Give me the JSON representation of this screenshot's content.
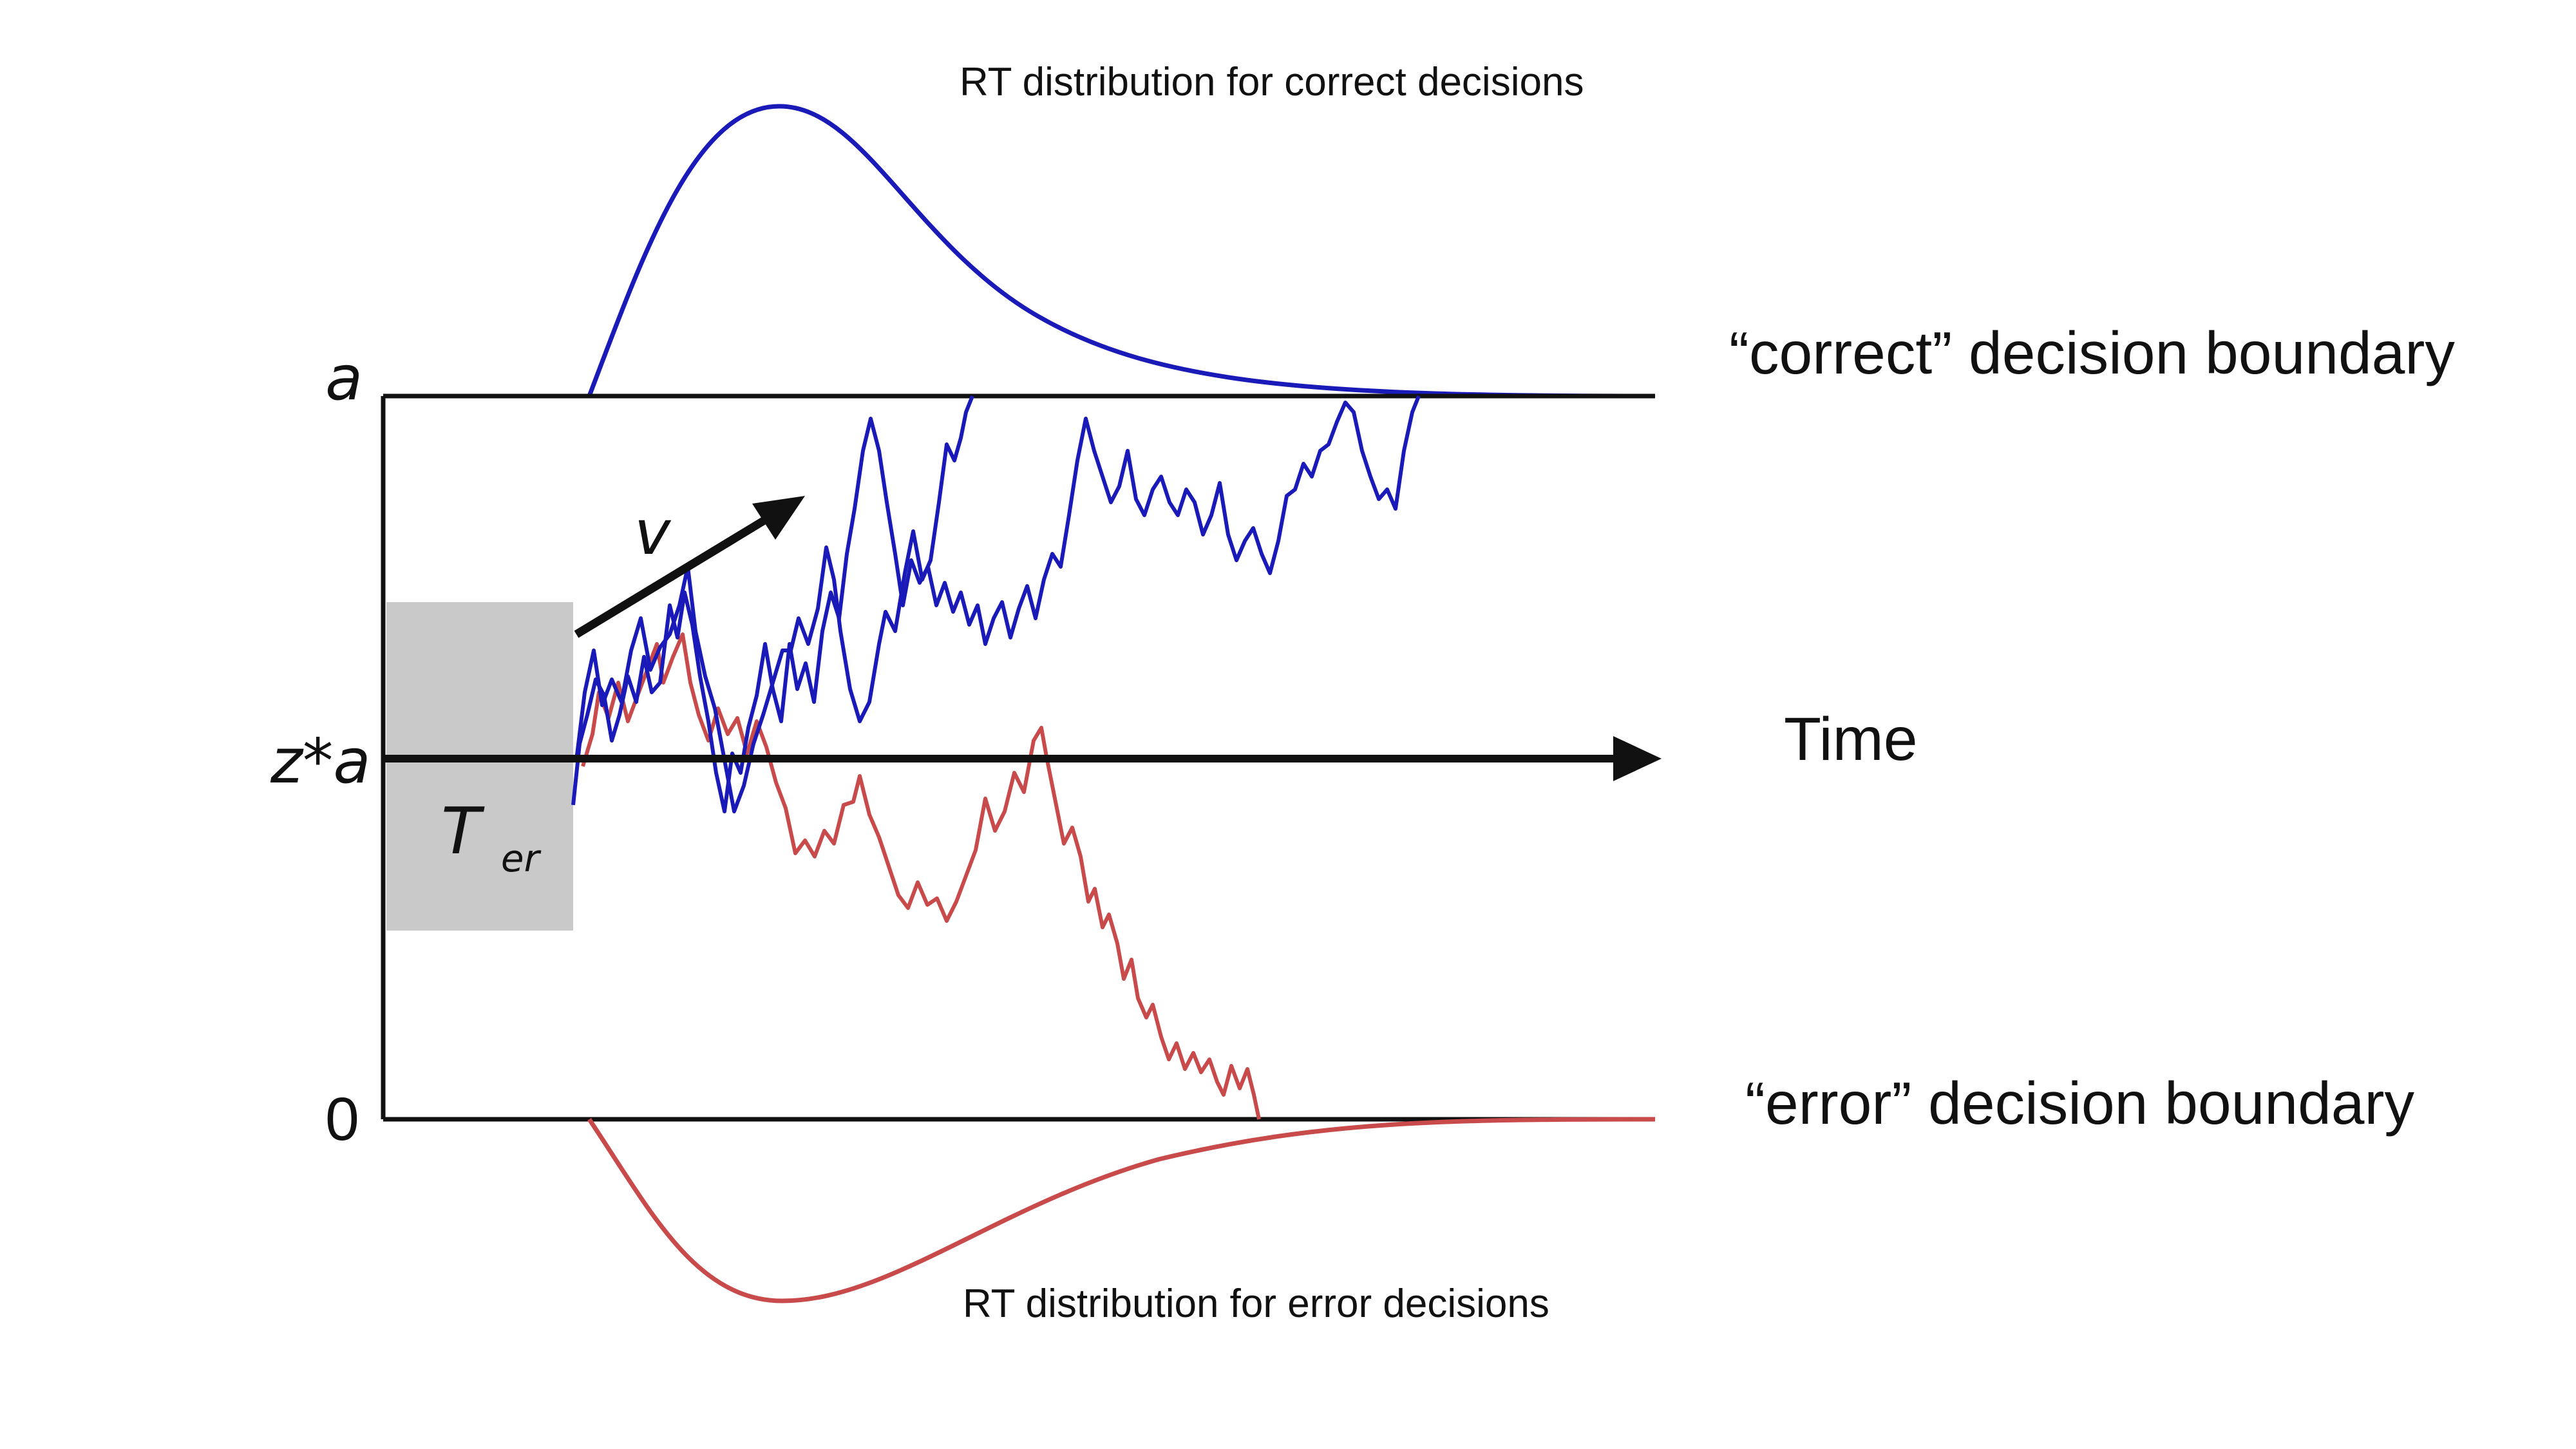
{
  "labels": {
    "top_dist": "RT distribution for correct decisions",
    "bottom_dist": "RT distribution for error decisions",
    "correct_boundary": "“correct” decision boundary",
    "error_boundary": "“error” decision boundary",
    "time_axis": "Time",
    "upper_threshold": "a",
    "start_point": "z*a",
    "lower_threshold": "0",
    "drift": "v",
    "nondecision_main": "T",
    "nondecision_sub": "er"
  },
  "colors": {
    "correct": "#1a1ab8",
    "error": "#c84a4a",
    "nondecision_box": "#c9c9c9",
    "axis": "#111111"
  },
  "icons": {
    "time_arrow": "arrow-right-icon",
    "drift_arrow": "arrow-up-right-icon"
  }
}
